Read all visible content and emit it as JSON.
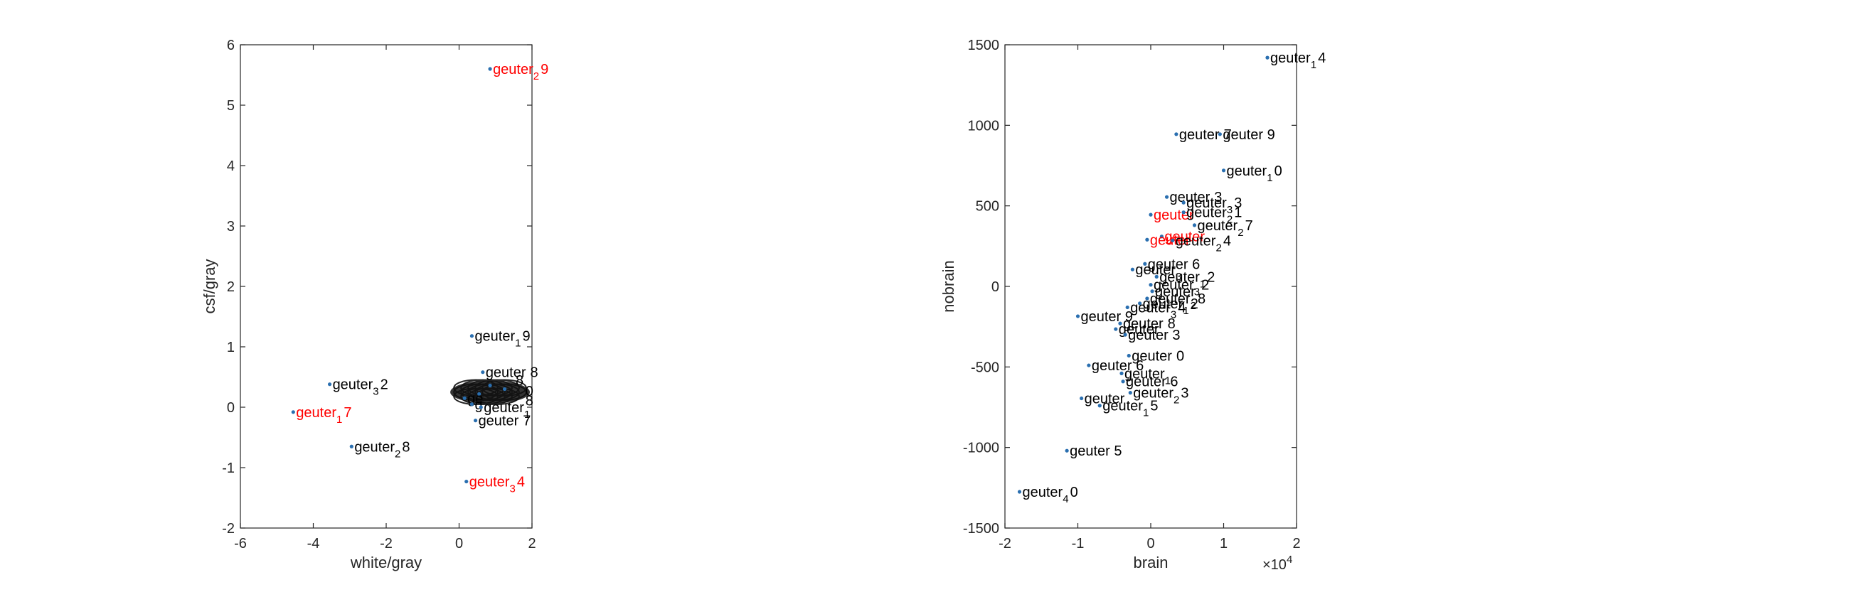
{
  "chart_data": [
    {
      "type": "scatter",
      "xlabel": "white/gray",
      "ylabel": "csf/gray",
      "xlim": [
        -6,
        2
      ],
      "ylim": [
        -2,
        6
      ],
      "xticks": [
        "-6",
        "-4",
        "-2",
        "0",
        "2"
      ],
      "yticks": [
        "-2",
        "-1",
        "0",
        "1",
        "2",
        "3",
        "4",
        "5",
        "6"
      ],
      "marker_color": "#2a6fb0",
      "highlight_color": "#ff0000",
      "label_color": "#000000",
      "points": [
        {
          "x": 0.85,
          "y": 5.6,
          "label": "geuter",
          "sub": "2",
          "tail": "9",
          "highlight": true
        },
        {
          "x": 0.35,
          "y": 1.18,
          "label": "geuter",
          "sub": "1",
          "tail": "9",
          "highlight": false
        },
        {
          "x": 0.65,
          "y": 0.58,
          "label": "geuter",
          "sub": "",
          "tail": "8",
          "highlight": false
        },
        {
          "x": -3.55,
          "y": 0.38,
          "label": "geuter",
          "sub": "3",
          "tail": "2",
          "highlight": false
        },
        {
          "x": 0.85,
          "y": 0.36,
          "label": "",
          "sub": "",
          "tail": "",
          "highlight": false
        },
        {
          "x": 1.25,
          "y": 0.3,
          "label": "",
          "sub": "",
          "tail": "",
          "highlight": false
        },
        {
          "x": 0.55,
          "y": 0.22,
          "label": "",
          "sub": "",
          "tail": "",
          "highlight": false
        },
        {
          "x": 0.15,
          "y": 0.15,
          "label": "ge",
          "sub": "",
          "tail": "",
          "highlight": false
        },
        {
          "x": 0.35,
          "y": 0.05,
          "label": "g",
          "sub": "",
          "tail": "",
          "highlight": false
        },
        {
          "x": 0.6,
          "y": 0.0,
          "label": "geuter",
          "sub": "1",
          "tail": "",
          "highlight": false
        },
        {
          "x": 0.45,
          "y": -0.22,
          "label": "geuter",
          "sub": "",
          "tail": "7",
          "highlight": false
        },
        {
          "x": -4.55,
          "y": -0.08,
          "label": "geuter",
          "sub": "1",
          "tail": "7",
          "highlight": true
        },
        {
          "x": -2.95,
          "y": -0.65,
          "label": "geuter",
          "sub": "2",
          "tail": "8",
          "highlight": false
        },
        {
          "x": 0.2,
          "y": -1.23,
          "label": "geuter",
          "sub": "3",
          "tail": "4",
          "highlight": true
        }
      ],
      "cluster_center": [
        0.85,
        0.25
      ],
      "cluster_edge_glyphs": [
        {
          "text": "0",
          "x": 1.82,
          "y": 0.27
        },
        {
          "text": "8",
          "x": 1.82,
          "y": 0.11
        },
        {
          "text": "8",
          "x": 1.55,
          "y": 0.45
        }
      ]
    },
    {
      "type": "scatter",
      "xlabel": "brain",
      "ylabel": "nobrain",
      "xlim": [
        -2,
        2
      ],
      "ylim": [
        -1500,
        1500
      ],
      "x_exponent_base": "×10",
      "x_exponent_power": "4",
      "xticks": [
        "-2",
        "-1",
        "0",
        "1",
        "2"
      ],
      "yticks": [
        "-1500",
        "-1000",
        "-500",
        "0",
        "500",
        "1000",
        "1500"
      ],
      "marker_color": "#2a6fb0",
      "highlight_color": "#ff0000",
      "label_color": "#000000",
      "points": [
        {
          "x": 1.6,
          "y": 1420,
          "label": "geuter",
          "sub": "1",
          "tail": "4",
          "highlight": false
        },
        {
          "x": 0.35,
          "y": 945,
          "label": "geuter",
          "sub": "",
          "tail": "7",
          "highlight": false
        },
        {
          "x": 0.95,
          "y": 945,
          "label": "geuter 9",
          "sub": "",
          "tail": "",
          "highlight": false
        },
        {
          "x": 1.0,
          "y": 720,
          "label": "geuter",
          "sub": "1",
          "tail": "0",
          "highlight": false
        },
        {
          "x": 0.22,
          "y": 555,
          "label": "geuter",
          "sub": "",
          "tail": "3",
          "highlight": false
        },
        {
          "x": 0.45,
          "y": 520,
          "label": "geuter",
          "sub": "3",
          "tail": "3",
          "highlight": false
        },
        {
          "x": 0.0,
          "y": 445,
          "label": "geuter",
          "sub": "",
          "tail": "",
          "highlight": true
        },
        {
          "x": 0.45,
          "y": 460,
          "label": "geuter",
          "sub": "2",
          "tail": "1",
          "highlight": false
        },
        {
          "x": 0.6,
          "y": 380,
          "label": "geuter",
          "sub": "2",
          "tail": "7",
          "highlight": false
        },
        {
          "x": 0.15,
          "y": 310,
          "label": "geuter",
          "sub": "",
          "tail": "",
          "highlight": true
        },
        {
          "x": -0.05,
          "y": 290,
          "label": "geuter",
          "sub": "",
          "tail": "",
          "highlight": true
        },
        {
          "x": 0.3,
          "y": 285,
          "label": "geuter",
          "sub": "2",
          "tail": "4",
          "highlight": false
        },
        {
          "x": -0.08,
          "y": 140,
          "label": "geuter 6",
          "sub": "",
          "tail": "",
          "highlight": false
        },
        {
          "x": -0.25,
          "y": 105,
          "label": "geuter",
          "sub": "3",
          "tail": "",
          "highlight": false
        },
        {
          "x": 0.08,
          "y": 60,
          "label": "geuter",
          "sub": "1",
          "tail": "2",
          "highlight": false
        },
        {
          "x": 0.0,
          "y": 10,
          "label": "geuter",
          "sub": "3",
          "tail": "2",
          "highlight": false
        },
        {
          "x": 0.02,
          "y": -30,
          "label": "geuter",
          "sub": "",
          "tail": "",
          "highlight": false
        },
        {
          "x": -0.05,
          "y": -75,
          "label": "geuter",
          "sub": "2",
          "tail": "8",
          "highlight": false
        },
        {
          "x": -0.15,
          "y": -105,
          "label": "geuter",
          "sub": "1",
          "tail": "2",
          "highlight": false
        },
        {
          "x": -0.32,
          "y": -130,
          "label": "geuter",
          "sub": "3",
          "tail": "4",
          "highlight": false
        },
        {
          "x": -1.0,
          "y": -185,
          "label": "geuter 9",
          "sub": "",
          "tail": "",
          "highlight": false
        },
        {
          "x": -0.42,
          "y": -230,
          "label": "geuter",
          "sub": "",
          "tail": "8",
          "highlight": false
        },
        {
          "x": -0.48,
          "y": -265,
          "label": "geuter",
          "sub": "",
          "tail": "",
          "highlight": false
        },
        {
          "x": -0.35,
          "y": -300,
          "label": "geuter 3",
          "sub": "",
          "tail": "",
          "highlight": false
        },
        {
          "x": -0.3,
          "y": -430,
          "label": "geuter",
          "sub": "",
          "tail": "0",
          "highlight": false
        },
        {
          "x": -0.85,
          "y": -490,
          "label": "geuter 6",
          "sub": "",
          "tail": "",
          "highlight": false
        },
        {
          "x": -0.4,
          "y": -540,
          "label": "geuter",
          "sub": "1",
          "tail": "",
          "highlight": false
        },
        {
          "x": -0.38,
          "y": -590,
          "label": "geuter 6",
          "sub": "",
          "tail": "",
          "highlight": false
        },
        {
          "x": -0.28,
          "y": -660,
          "label": "geuter",
          "sub": "2",
          "tail": "3",
          "highlight": false
        },
        {
          "x": -0.95,
          "y": -695,
          "label": "geuter",
          "sub": "",
          "tail": "",
          "highlight": false
        },
        {
          "x": -0.7,
          "y": -740,
          "label": "geuter",
          "sub": "1",
          "tail": "5",
          "highlight": false
        },
        {
          "x": -1.15,
          "y": -1020,
          "label": "geuter 5",
          "sub": "",
          "tail": "",
          "highlight": false
        },
        {
          "x": -1.8,
          "y": -1275,
          "label": "geuter",
          "sub": "4",
          "tail": "0",
          "highlight": false
        }
      ]
    }
  ]
}
